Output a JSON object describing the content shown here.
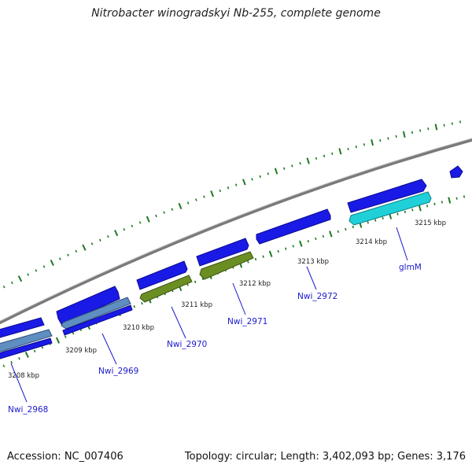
{
  "title": "Nitrobacter winogradskyi Nb-255, complete genome",
  "footer": {
    "accession": "Accession: NC_007406",
    "summary": "Topology: circular; Length: 3,402,093 bp; Genes: 3,176"
  },
  "colors": {
    "backbone": "#8a8a8a",
    "forward_gene": "#1a1ae6",
    "reverse_gene_blue": "#1a1ae6",
    "reverse_gene_olive": "#6b8e23",
    "reverse_gene_steel": "#5f8fc0",
    "reverse_gene_cyan": "#1fd0d8",
    "tick": "#1e7a1e",
    "gene_label": "#1a1acc"
  },
  "scale_labels": [
    "3208 kbp",
    "3209 kbp",
    "3210 kbp",
    "3211 kbp",
    "3212 kbp",
    "3213 kbp",
    "3214 kbp",
    "3215 kbp"
  ],
  "gene_labels": [
    "Nwi_2968",
    "Nwi_2969",
    "Nwi_2970",
    "Nwi_2971",
    "Nwi_2972",
    "glmM"
  ]
}
